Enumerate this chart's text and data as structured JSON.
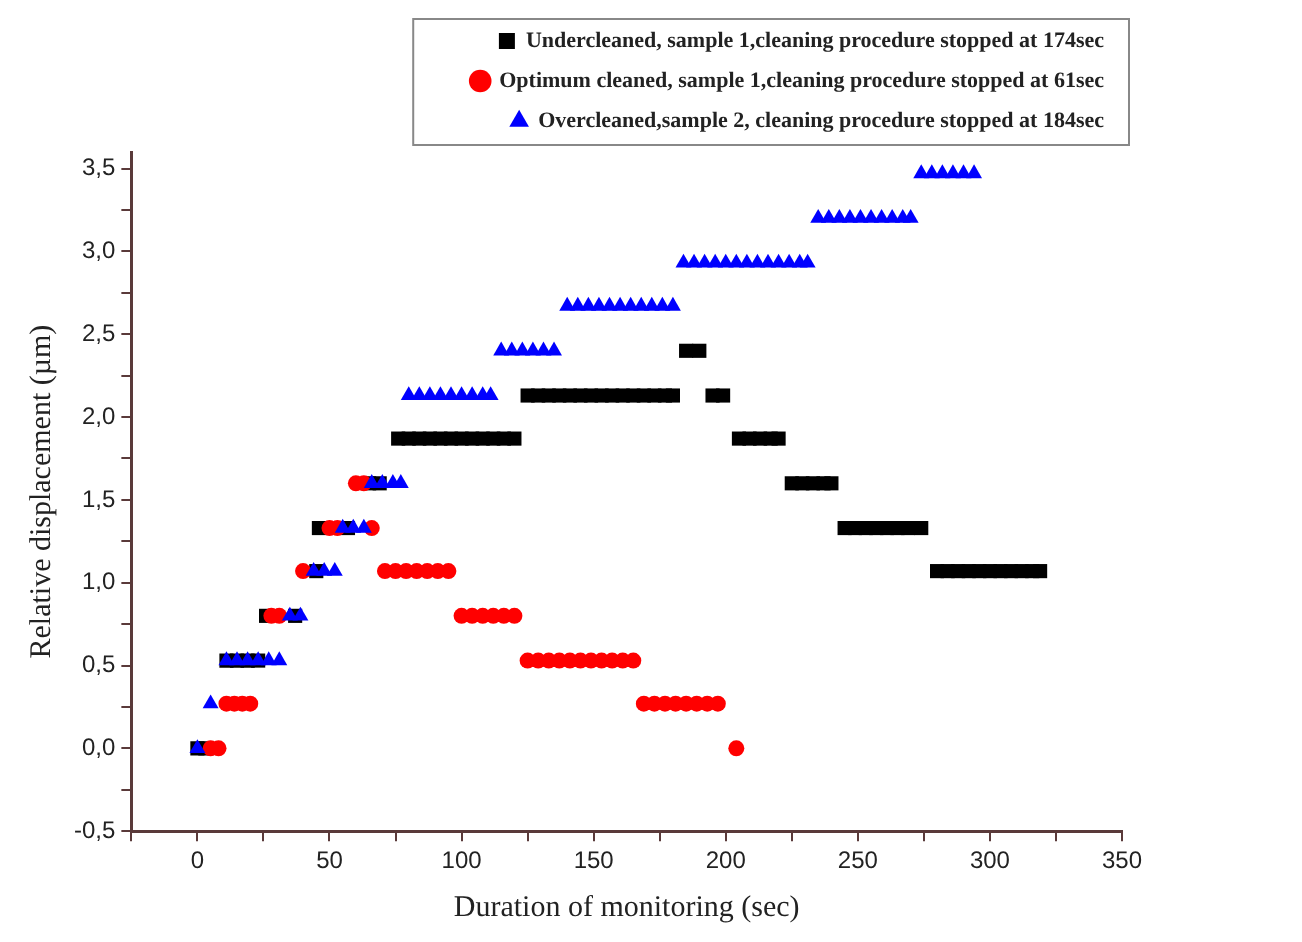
{
  "chart_data": {
    "type": "scatter",
    "xlabel": "Duration of monitoring (sec)",
    "ylabel": "Relative displacement (µm)",
    "legend": "top right",
    "grid": false,
    "xlim": [
      -25,
      350
    ],
    "xticks": [
      {
        "value": -25,
        "label": null
      },
      0,
      {
        "value": 25,
        "label": null
      },
      50,
      {
        "value": 75,
        "label": null
      },
      100,
      {
        "value": 125,
        "label": null
      },
      150,
      {
        "value": 175,
        "label": null
      },
      200,
      {
        "value": 225,
        "label": null
      },
      250,
      {
        "value": 275,
        "label": null
      },
      300,
      {
        "value": 325,
        "label": null
      },
      350
    ],
    "ylim": [
      -0.5,
      3.6
    ],
    "yticks": [
      {
        "value": -0.5,
        "label": "-0,5"
      },
      {
        "value": -0.25,
        "label": null
      },
      {
        "value": 0,
        "label": "0,0"
      },
      {
        "value": 0.25,
        "label": null
      },
      {
        "value": 0.5,
        "label": "0,5"
      },
      {
        "value": 0.75,
        "label": null
      },
      {
        "value": 1,
        "label": "1,0"
      },
      {
        "value": 1.25,
        "label": null
      },
      {
        "value": 1.5,
        "label": "1,5"
      },
      {
        "value": 1.75,
        "label": null
      },
      {
        "value": 2,
        "label": "2,0"
      },
      {
        "value": 2.25,
        "label": null
      },
      {
        "value": 2.5,
        "label": "2,5"
      },
      {
        "value": 2.75,
        "label": null
      },
      {
        "value": 3,
        "label": "3,0"
      },
      {
        "value": 3.25,
        "label": null
      },
      {
        "value": 3.5,
        "label": "3,5"
      }
    ],
    "series": [
      {
        "name": "Undercleaned, sample 1,cleaning procedure stopped at 174sec",
        "color": "#000000",
        "marker": "square",
        "x": [
          0,
          3,
          11,
          15,
          19,
          23,
          26,
          37,
          45,
          46,
          57,
          65,
          69,
          76,
          80,
          84,
          88,
          92,
          96,
          100,
          104,
          108,
          112,
          116,
          120,
          125,
          129,
          133,
          137,
          141,
          145,
          149,
          153,
          157,
          161,
          165,
          169,
          173,
          177,
          180,
          185,
          190,
          195,
          199,
          205,
          209,
          213,
          217,
          220,
          225,
          229,
          233,
          237,
          240,
          245,
          249,
          253,
          257,
          261,
          265,
          269,
          274,
          280,
          284,
          288,
          292,
          296,
          300,
          304,
          308,
          312,
          316,
          319
        ],
        "values": [
          0,
          0,
          0.53,
          0.53,
          0.53,
          0.53,
          0.8,
          0.8,
          1.07,
          1.33,
          1.33,
          1.6,
          1.6,
          1.87,
          1.87,
          1.87,
          1.87,
          1.87,
          1.87,
          1.87,
          1.87,
          1.87,
          1.87,
          1.87,
          1.87,
          2.13,
          2.13,
          2.13,
          2.13,
          2.13,
          2.13,
          2.13,
          2.13,
          2.13,
          2.13,
          2.13,
          2.13,
          2.13,
          2.13,
          2.13,
          2.4,
          2.4,
          2.13,
          2.13,
          1.87,
          1.87,
          1.87,
          1.87,
          1.87,
          1.6,
          1.6,
          1.6,
          1.6,
          1.6,
          1.33,
          1.33,
          1.33,
          1.33,
          1.33,
          1.33,
          1.33,
          1.33,
          1.07,
          1.07,
          1.07,
          1.07,
          1.07,
          1.07,
          1.07,
          1.07,
          1.07,
          1.07,
          1.07
        ]
      },
      {
        "name": "Optimum cleaned, sample 1,cleaning procedure stopped at 61sec",
        "color": "#ff0000",
        "marker": "circle",
        "x": [
          5,
          8,
          11,
          14,
          17,
          20,
          28,
          31,
          40,
          50,
          53,
          60,
          63,
          66,
          71,
          75,
          79,
          83,
          87,
          91,
          95,
          100,
          104,
          108,
          112,
          116,
          120,
          125,
          129,
          133,
          137,
          141,
          145,
          149,
          153,
          157,
          161,
          165,
          169,
          173,
          177,
          181,
          185,
          189,
          193,
          197,
          204
        ],
        "values": [
          0,
          0,
          0.27,
          0.27,
          0.27,
          0.27,
          0.8,
          0.8,
          1.07,
          1.33,
          1.33,
          1.6,
          1.6,
          1.33,
          1.07,
          1.07,
          1.07,
          1.07,
          1.07,
          1.07,
          1.07,
          0.8,
          0.8,
          0.8,
          0.8,
          0.8,
          0.8,
          0.53,
          0.53,
          0.53,
          0.53,
          0.53,
          0.53,
          0.53,
          0.53,
          0.53,
          0.53,
          0.53,
          0.27,
          0.27,
          0.27,
          0.27,
          0.27,
          0.27,
          0.27,
          0.27,
          0
        ]
      },
      {
        "name": "Overcleaned,sample 2, cleaning procedure stopped at 184sec",
        "color": "#0000ff",
        "marker": "triangle",
        "x": [
          0,
          5,
          11,
          15,
          19,
          23,
          27,
          31,
          35,
          39,
          44,
          48,
          52,
          55,
          59,
          63,
          66,
          70,
          74,
          77,
          80,
          84,
          88,
          92,
          96,
          100,
          104,
          108,
          111,
          115,
          119,
          123,
          127,
          131,
          135,
          140,
          144,
          148,
          152,
          156,
          160,
          164,
          168,
          172,
          176,
          180,
          184,
          188,
          192,
          196,
          200,
          204,
          208,
          212,
          216,
          220,
          224,
          228,
          231,
          235,
          239,
          243,
          247,
          251,
          255,
          259,
          263,
          267,
          270,
          274,
          278,
          282,
          286,
          290,
          294
        ],
        "values": [
          0,
          0.27,
          0.53,
          0.53,
          0.53,
          0.53,
          0.53,
          0.53,
          0.8,
          0.8,
          1.07,
          1.07,
          1.07,
          1.33,
          1.33,
          1.33,
          1.6,
          1.6,
          1.6,
          1.6,
          2.13,
          2.13,
          2.13,
          2.13,
          2.13,
          2.13,
          2.13,
          2.13,
          2.13,
          2.4,
          2.4,
          2.4,
          2.4,
          2.4,
          2.4,
          2.67,
          2.67,
          2.67,
          2.67,
          2.67,
          2.67,
          2.67,
          2.67,
          2.67,
          2.67,
          2.67,
          2.93,
          2.93,
          2.93,
          2.93,
          2.93,
          2.93,
          2.93,
          2.93,
          2.93,
          2.93,
          2.93,
          2.93,
          2.93,
          3.2,
          3.2,
          3.2,
          3.2,
          3.2,
          3.2,
          3.2,
          3.2,
          3.2,
          3.2,
          3.47,
          3.47,
          3.47,
          3.47,
          3.47,
          3.47
        ]
      }
    ]
  }
}
